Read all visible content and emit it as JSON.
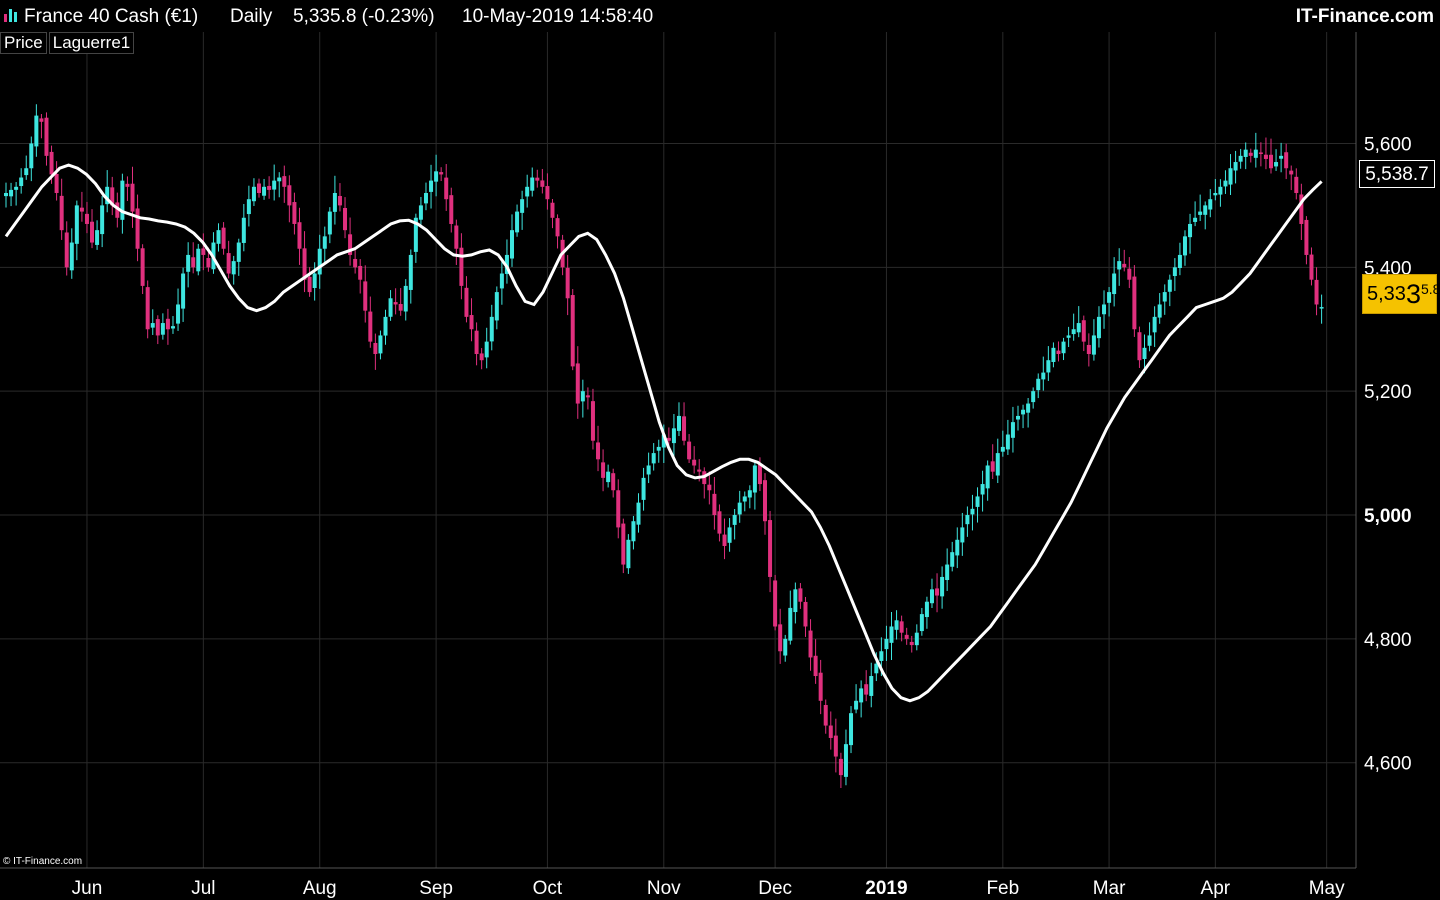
{
  "header": {
    "instrument": "France 40 Cash (€1)",
    "timeframe": "Daily",
    "quote": "5,335.8 (-0.23%)",
    "datetime": "10-May-2019 14:58:40",
    "brand": "IT-Finance.com"
  },
  "legend": {
    "items": [
      "Price",
      "Laguerre1"
    ]
  },
  "copyright": "© IT-Finance.com",
  "last_price": {
    "part1": "5,33",
    "part2": "3",
    "part3": "5.8"
  },
  "laguerre_value": "5,538.7",
  "colors": {
    "bull": "#3ee6e0",
    "bear": "#e0307e",
    "laguerre": "#ffffff",
    "background": "#000000",
    "grid": "#2a2a2a",
    "price_tag": "#f5c200"
  },
  "chart_data": {
    "type": "candlestick",
    "ylim": [
      4430,
      5780
    ],
    "y_ticks": [
      {
        "value": 4600,
        "label": "4,600",
        "bold": false
      },
      {
        "value": 4800,
        "label": "4,800",
        "bold": false
      },
      {
        "value": 5000,
        "label": "5,000",
        "bold": true
      },
      {
        "value": 5200,
        "label": "5,200",
        "bold": false
      },
      {
        "value": 5400,
        "label": "5,400",
        "bold": false
      },
      {
        "value": 5600,
        "label": "5,600",
        "bold": false
      }
    ],
    "x_labels": [
      {
        "label": "Jun",
        "bold": false
      },
      {
        "label": "Jul",
        "bold": false
      },
      {
        "label": "Aug",
        "bold": false
      },
      {
        "label": "Sep",
        "bold": false
      },
      {
        "label": "Oct",
        "bold": false
      },
      {
        "label": "Nov",
        "bold": false
      },
      {
        "label": "Dec",
        "bold": false
      },
      {
        "label": "2019",
        "bold": true
      },
      {
        "label": "Feb",
        "bold": false
      },
      {
        "label": "Mar",
        "bold": false
      },
      {
        "label": "Apr",
        "bold": false
      },
      {
        "label": "May",
        "bold": false
      }
    ],
    "x_label_index": [
      16,
      39,
      62,
      85,
      107,
      130,
      152,
      174,
      197,
      218,
      239,
      261
    ],
    "close": [
      5520,
      5525,
      5530,
      5545,
      5560,
      5600,
      5645,
      5635,
      5580,
      5550,
      5520,
      5460,
      5400,
      5440,
      5500,
      5490,
      5470,
      5440,
      5460,
      5500,
      5530,
      5500,
      5480,
      5540,
      5530,
      5490,
      5430,
      5370,
      5300,
      5310,
      5290,
      5310,
      5300,
      5305,
      5340,
      5390,
      5420,
      5400,
      5430,
      5420,
      5400,
      5440,
      5460,
      5430,
      5390,
      5410,
      5440,
      5480,
      5510,
      5530,
      5520,
      5530,
      5525,
      5540,
      5545,
      5530,
      5500,
      5470,
      5430,
      5380,
      5360,
      5390,
      5430,
      5450,
      5490,
      5520,
      5500,
      5460,
      5420,
      5400,
      5380,
      5330,
      5280,
      5260,
      5290,
      5320,
      5350,
      5340,
      5330,
      5370,
      5420,
      5480,
      5500,
      5520,
      5540,
      5555,
      5550,
      5510,
      5470,
      5430,
      5370,
      5320,
      5300,
      5260,
      5250,
      5280,
      5320,
      5360,
      5390,
      5420,
      5460,
      5490,
      5510,
      5530,
      5545,
      5540,
      5530,
      5510,
      5480,
      5450,
      5400,
      5350,
      5240,
      5180,
      5200,
      5190,
      5120,
      5090,
      5060,
      5070,
      5040,
      4980,
      4920,
      4960,
      4990,
      5020,
      5060,
      5080,
      5100,
      5110,
      5130,
      5120,
      5140,
      5160,
      5120,
      5090,
      5080,
      5070,
      5050,
      5040,
      5000,
      4970,
      4950,
      4980,
      5000,
      5020,
      5030,
      5040,
      5080,
      5050,
      4990,
      4900,
      4820,
      4780,
      4800,
      4850,
      4880,
      4860,
      4820,
      4770,
      4740,
      4700,
      4660,
      4640,
      4610,
      4580,
      4630,
      4680,
      4700,
      4720,
      4710,
      4740,
      4760,
      4780,
      4800,
      4820,
      4830,
      4810,
      4800,
      4790,
      4810,
      4840,
      4860,
      4880,
      4870,
      4900,
      4920,
      4940,
      4960,
      4980,
      5000,
      5010,
      5030,
      5050,
      5080,
      5070,
      5100,
      5110,
      5130,
      5150,
      5160,
      5170,
      5180,
      5200,
      5220,
      5230,
      5250,
      5270,
      5260,
      5280,
      5290,
      5300,
      5310,
      5280,
      5260,
      5290,
      5320,
      5340,
      5360,
      5390,
      5410,
      5400,
      5380,
      5300,
      5250,
      5270,
      5290,
      5320,
      5340,
      5360,
      5380,
      5400,
      5420,
      5450,
      5470,
      5480,
      5490,
      5500,
      5510,
      5520,
      5530,
      5540,
      5560,
      5570,
      5580,
      5590,
      5580,
      5590,
      5585,
      5575,
      5560,
      5570,
      5580,
      5560,
      5550,
      5520,
      5470,
      5420,
      5380,
      5340,
      5335.8
    ],
    "laguerre": [
      5450,
      5470,
      5490,
      5510,
      5530,
      5545,
      5560,
      5565,
      5560,
      5550,
      5535,
      5515,
      5500,
      5490,
      5485,
      5480,
      5478,
      5475,
      5473,
      5470,
      5465,
      5455,
      5440,
      5420,
      5395,
      5370,
      5350,
      5335,
      5330,
      5335,
      5345,
      5360,
      5370,
      5380,
      5390,
      5400,
      5410,
      5420,
      5425,
      5430,
      5440,
      5450,
      5460,
      5470,
      5475,
      5476,
      5470,
      5460,
      5445,
      5430,
      5420,
      5418,
      5420,
      5425,
      5428,
      5420,
      5400,
      5370,
      5345,
      5340,
      5360,
      5390,
      5420,
      5435,
      5450,
      5455,
      5445,
      5420,
      5390,
      5350,
      5300,
      5250,
      5200,
      5150,
      5110,
      5080,
      5065,
      5060,
      5062,
      5070,
      5078,
      5085,
      5090,
      5090,
      5085,
      5075,
      5065,
      5050,
      5035,
      5020,
      5005,
      4980,
      4950,
      4915,
      4880,
      4845,
      4810,
      4775,
      4745,
      4720,
      4705,
      4700,
      4705,
      4715,
      4730,
      4745,
      4760,
      4775,
      4790,
      4805,
      4820,
      4840,
      4860,
      4880,
      4900,
      4920,
      4945,
      4970,
      4995,
      5020,
      5050,
      5080,
      5110,
      5140,
      5165,
      5190,
      5210,
      5230,
      5250,
      5270,
      5290,
      5305,
      5320,
      5335,
      5340,
      5345,
      5350,
      5360,
      5375,
      5390,
      5410,
      5430,
      5450,
      5470,
      5490,
      5510,
      5525,
      5538.7
    ]
  }
}
